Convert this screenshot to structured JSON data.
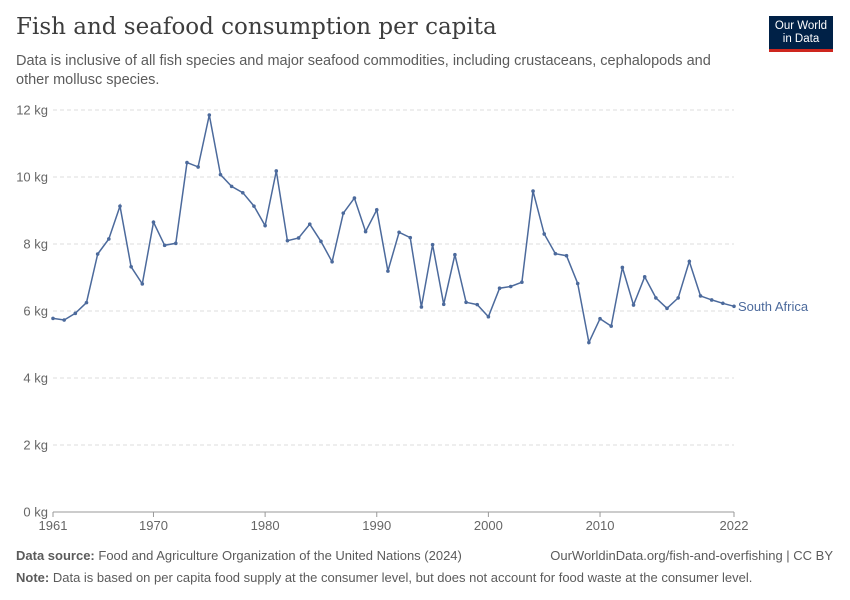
{
  "header": {
    "title": "Fish and seafood consumption per capita",
    "subtitle": "Data is inclusive of all fish species and major seafood commodities, including crustaceans, cephalopods and other mollusc species."
  },
  "logo": {
    "line1": "Our World",
    "line2": "in Data",
    "bg": "#002147",
    "accent": "#ce261e"
  },
  "footer": {
    "source_label": "Data source:",
    "source_text": "Food and Agriculture Organization of the United Nations (2024)",
    "link": "OurWorldinData.org/fish-and-overfishing | CC BY",
    "note_label": "Note:",
    "note_text": "Data is based on per capita food supply at the consumer level, but does not account for food waste at the consumer level."
  },
  "chart_data": {
    "type": "line",
    "x": [
      1961,
      1962,
      1963,
      1964,
      1965,
      1966,
      1967,
      1968,
      1969,
      1970,
      1971,
      1972,
      1973,
      1974,
      1975,
      1976,
      1977,
      1978,
      1979,
      1980,
      1981,
      1982,
      1983,
      1984,
      1985,
      1986,
      1987,
      1988,
      1989,
      1990,
      1991,
      1992,
      1993,
      1994,
      1995,
      1996,
      1997,
      1998,
      1999,
      2000,
      2001,
      2002,
      2003,
      2004,
      2005,
      2006,
      2007,
      2008,
      2009,
      2010,
      2011,
      2012,
      2013,
      2014,
      2015,
      2016,
      2017,
      2018,
      2019,
      2020,
      2021,
      2022
    ],
    "series": [
      {
        "name": "South Africa",
        "color": "#4c6a9c",
        "values": [
          5.78,
          5.73,
          5.93,
          6.25,
          7.7,
          8.15,
          9.13,
          7.32,
          6.81,
          8.65,
          7.96,
          8.02,
          10.43,
          10.3,
          11.85,
          10.07,
          9.72,
          9.53,
          9.13,
          8.55,
          10.18,
          8.1,
          8.18,
          8.59,
          8.08,
          7.47,
          8.92,
          9.37,
          8.37,
          9.02,
          7.19,
          8.35,
          8.19,
          6.12,
          7.98,
          6.2,
          7.68,
          6.26,
          6.19,
          5.83,
          6.68,
          6.73,
          6.86,
          9.58,
          8.3,
          7.71,
          7.65,
          6.82,
          5.06,
          5.77,
          5.55,
          7.3,
          6.18,
          7.02,
          6.39,
          6.08,
          6.39,
          7.48,
          6.45,
          6.33,
          6.23,
          6.14
        ]
      }
    ],
    "xticks": [
      1961,
      1970,
      1980,
      1990,
      2000,
      2010,
      2022
    ],
    "yticks": [
      0,
      2,
      4,
      6,
      8,
      10,
      12
    ],
    "ytick_labels": [
      "0 kg",
      "2 kg",
      "4 kg",
      "6 kg",
      "8 kg",
      "10 kg",
      "12 kg"
    ],
    "xlim": [
      1961,
      2022
    ],
    "ylim": [
      0,
      12
    ],
    "grid": "horizontal dashed",
    "legend": "end-of-line label"
  }
}
